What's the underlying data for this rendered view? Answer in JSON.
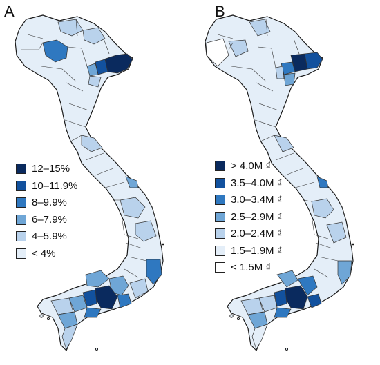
{
  "panels": [
    {
      "letter": "A",
      "legend": [
        {
          "label": "12–15%",
          "color": "#0a2a5e"
        },
        {
          "label": "10–11.9%",
          "color": "#12519e"
        },
        {
          "label": "8–9.9%",
          "color": "#2f78c0"
        },
        {
          "label": "6–7.9%",
          "color": "#6fa6d6"
        },
        {
          "label": "4–5.9%",
          "color": "#b9d2ec"
        },
        {
          "label": "< 4%",
          "color": "#e4eef8"
        }
      ]
    },
    {
      "letter": "B",
      "legend": [
        {
          "label": "> 4.0M ₫",
          "color": "#0a2a5e"
        },
        {
          "label": "3.5–4.0M ₫",
          "color": "#12519e"
        },
        {
          "label": "3.0–3.4M ₫",
          "color": "#2f78c0"
        },
        {
          "label": "2.5–2.9M ₫",
          "color": "#6fa6d6"
        },
        {
          "label": "2.0–2.4M ₫",
          "color": "#b9d2ec"
        },
        {
          "label": "1.5–1.9M ₫",
          "color": "#e4eef8"
        },
        {
          "label": "< 1.5M ₫",
          "color": "#ffffff"
        }
      ]
    }
  ],
  "map": {
    "outline_color": "#1a1a1a",
    "province_line_color": "#333333"
  }
}
